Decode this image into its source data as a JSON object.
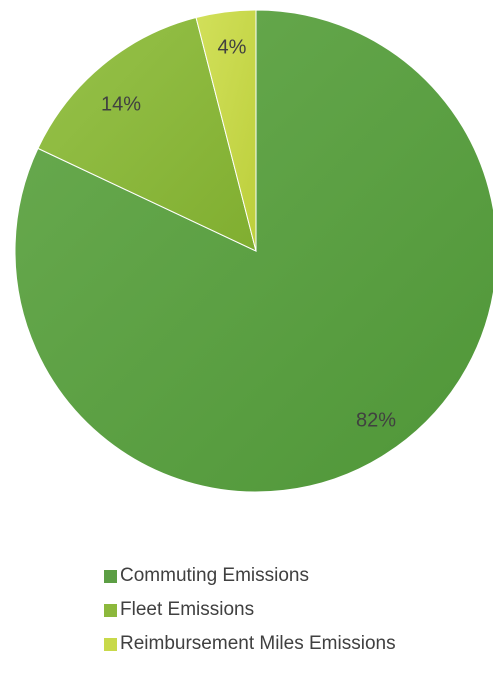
{
  "chart_data": {
    "type": "pie",
    "title": "",
    "categories": [
      "Commuting Emissions",
      "Fleet Emissions",
      "Reimbursement Miles Emissions"
    ],
    "values": [
      82,
      14,
      4
    ],
    "data_labels": [
      "82%",
      "14%",
      "4%"
    ],
    "colors": [
      "#5c9e44",
      "#8cb83c",
      "#c8d94a"
    ],
    "start_angle_deg": 0,
    "direction": "clockwise",
    "legend_position": "bottom"
  }
}
